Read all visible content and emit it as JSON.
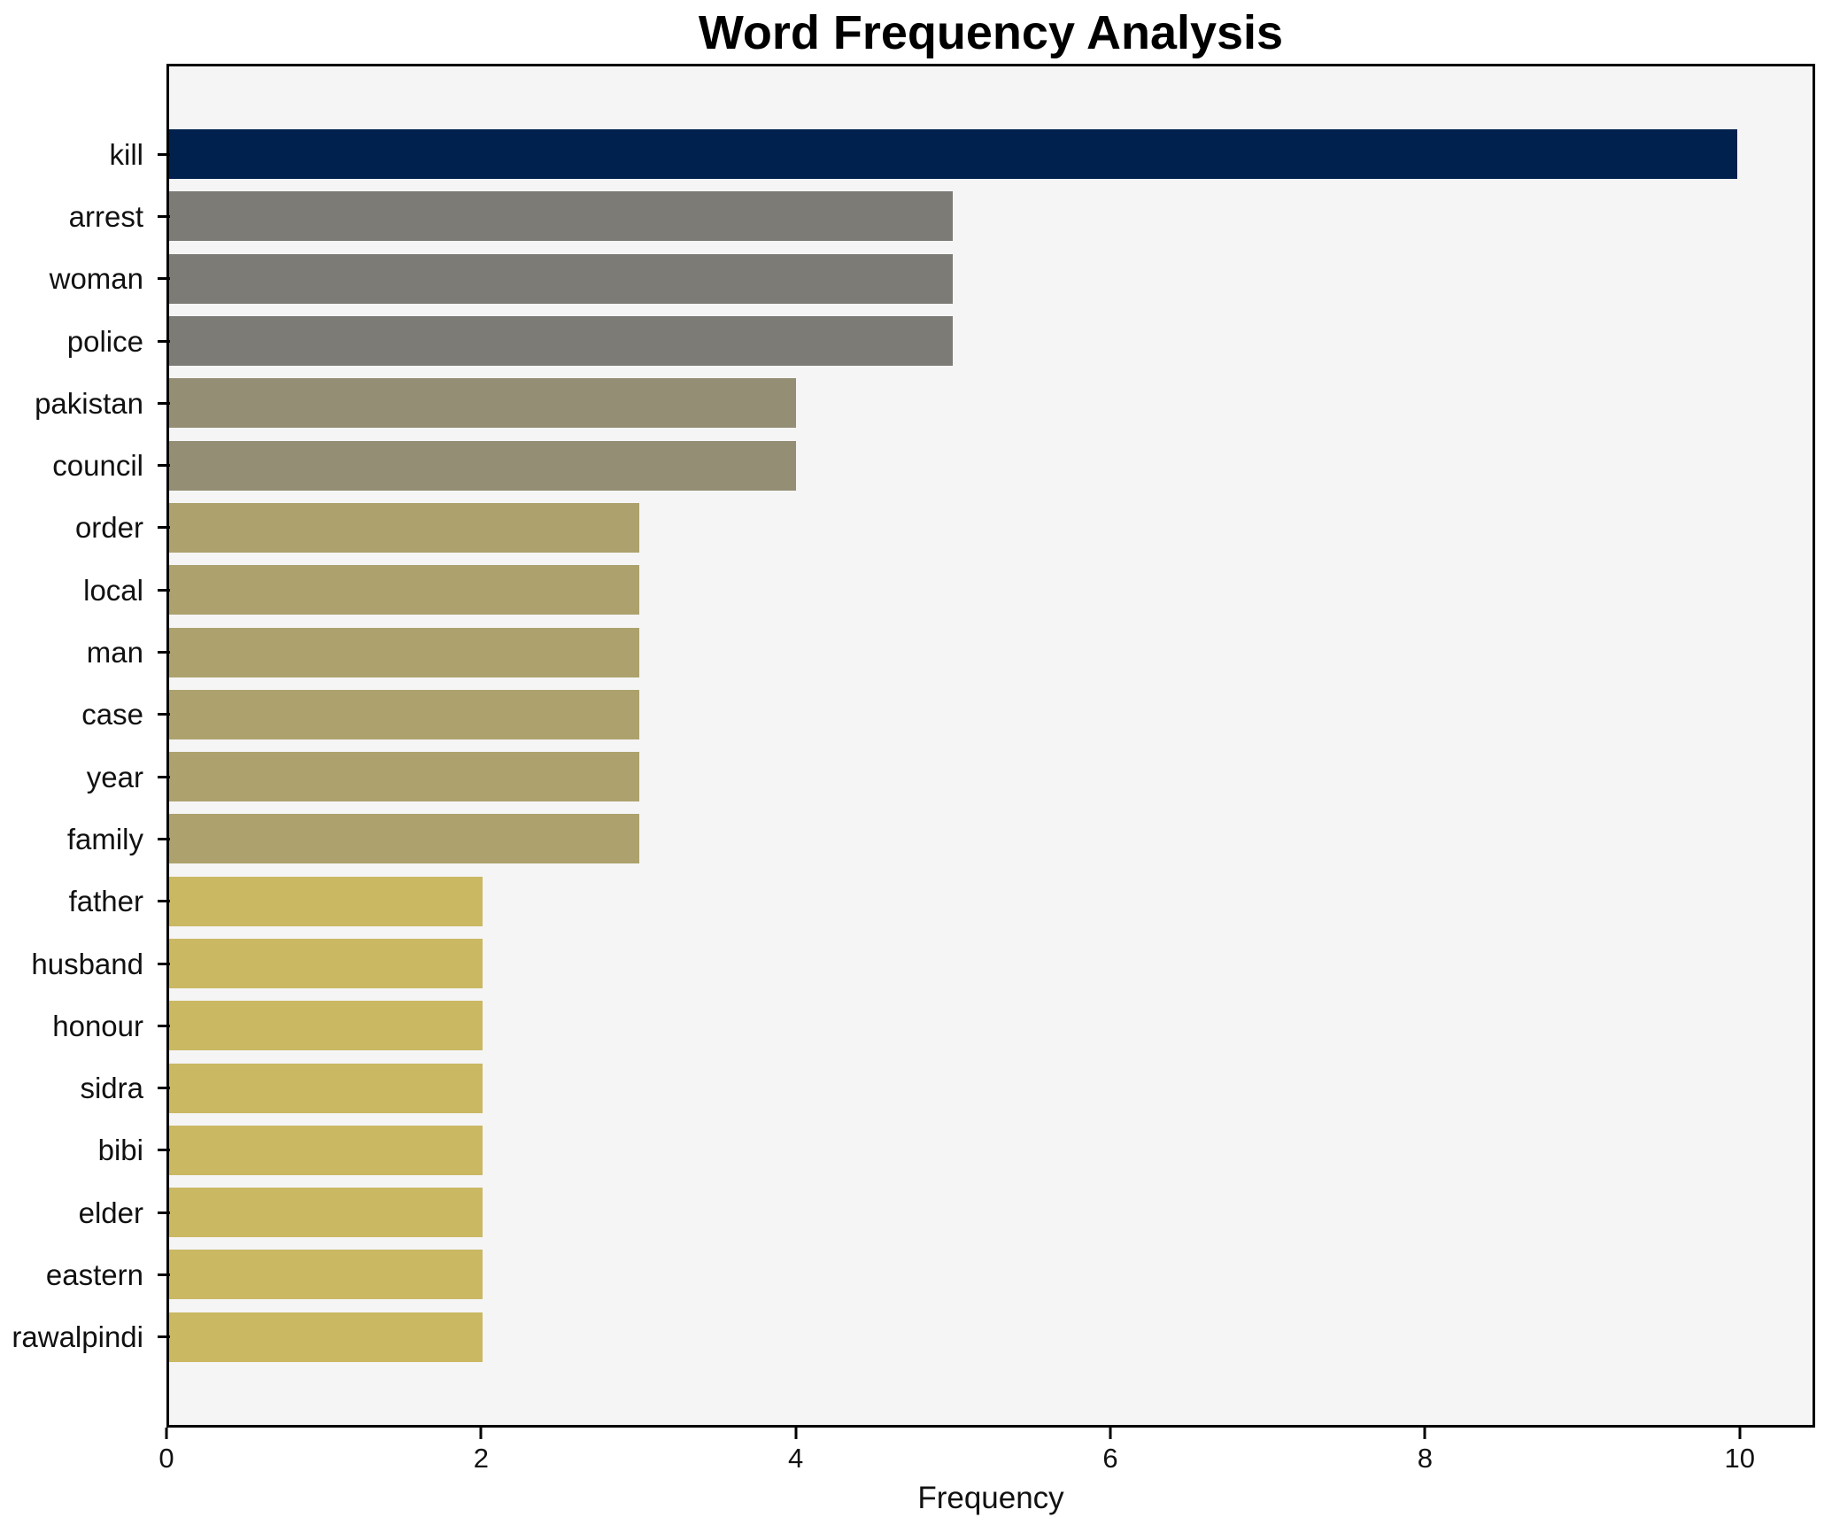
{
  "title": "Word Frequency Analysis",
  "xlabel": "Frequency",
  "colors": {
    "figure_background": "#ffffff",
    "plot_background": "#f5f5f6",
    "spine": "#000000",
    "text": "#111111",
    "bar_value_10": "#00214d",
    "bar_value_5": "#7c7b76",
    "bar_value_4": "#948e75",
    "bar_value_3": "#ada26e",
    "bar_value_2": "#cab863"
  },
  "chart_data": {
    "type": "bar",
    "orientation": "horizontal",
    "title": "Word Frequency Analysis",
    "xlabel": "Frequency",
    "ylabel": "",
    "grid": false,
    "legend": false,
    "xlim": [
      0,
      10.48
    ],
    "xticks": [
      0,
      2,
      4,
      6,
      8,
      10
    ],
    "categories": [
      "kill",
      "arrest",
      "woman",
      "police",
      "pakistan",
      "council",
      "order",
      "local",
      "man",
      "case",
      "year",
      "family",
      "father",
      "husband",
      "honour",
      "sidra",
      "bibi",
      "elder",
      "eastern",
      "rawalpindi"
    ],
    "values": [
      10,
      5,
      5,
      5,
      4,
      4,
      3,
      3,
      3,
      3,
      3,
      3,
      2,
      2,
      2,
      2,
      2,
      2,
      2,
      2
    ],
    "bar_colors": [
      "#00214d",
      "#7c7b76",
      "#7c7b76",
      "#7c7b76",
      "#948e75",
      "#948e75",
      "#ada26e",
      "#ada26e",
      "#ada26e",
      "#ada26e",
      "#ada26e",
      "#ada26e",
      "#cab863",
      "#cab863",
      "#cab863",
      "#cab863",
      "#cab863",
      "#cab863",
      "#cab863",
      "#cab863"
    ]
  }
}
